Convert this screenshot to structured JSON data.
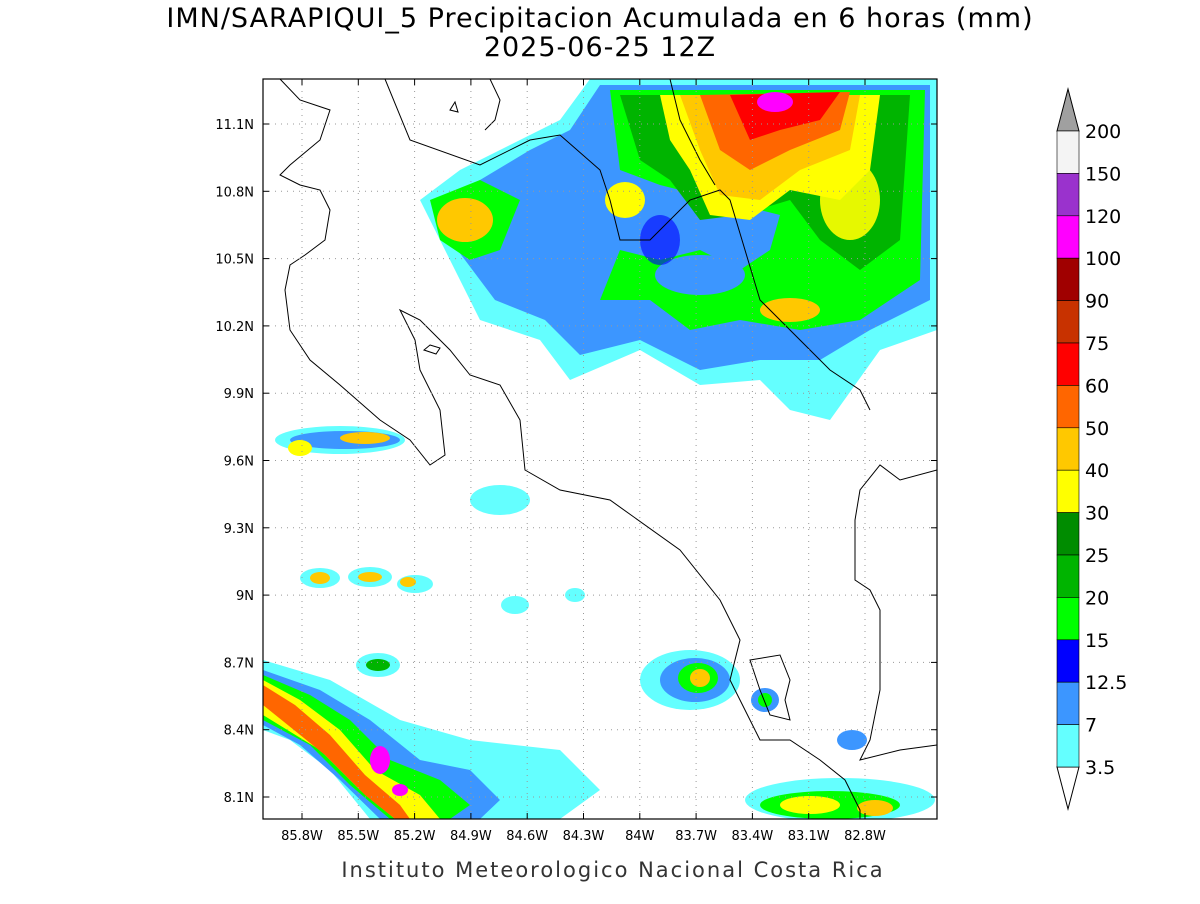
{
  "header": {
    "title": "IMN/SARAPIQUI_5 Precipitacion Acumulada en 6 horas (mm)",
    "subtitle": "2025-06-25 12Z"
  },
  "map": {
    "lat_ticks": [
      "11.1N",
      "10.8N",
      "10.5N",
      "10.2N",
      "9.9N",
      "9.6N",
      "9.3N",
      "9N",
      "8.7N",
      "8.4N",
      "8.1N"
    ],
    "lon_ticks": [
      "85.8W",
      "85.5W",
      "85.2W",
      "84.9W",
      "84.6W",
      "84.3W",
      "84W",
      "83.7W",
      "83.4W",
      "83.1W",
      "82.8W"
    ]
  },
  "colorbar": {
    "levels": [
      200,
      150,
      120,
      100,
      90,
      75,
      60,
      50,
      40,
      30,
      25,
      20,
      15,
      12.5,
      7,
      3.5
    ],
    "colors": [
      "#f4f4f4",
      "#9a32cd",
      "#ff00ff",
      "#a00000",
      "#c83200",
      "#ff0000",
      "#ff6600",
      "#ffc800",
      "#ffff00",
      "#008c00",
      "#00b400",
      "#00ff00",
      "#0000ff",
      "#3c96ff",
      "#64ffff"
    ],
    "above_color": "#a0a0a0",
    "below_color": "#ffffff"
  },
  "footer": "Instituto Meteorologico Nacional Costa Rica"
}
